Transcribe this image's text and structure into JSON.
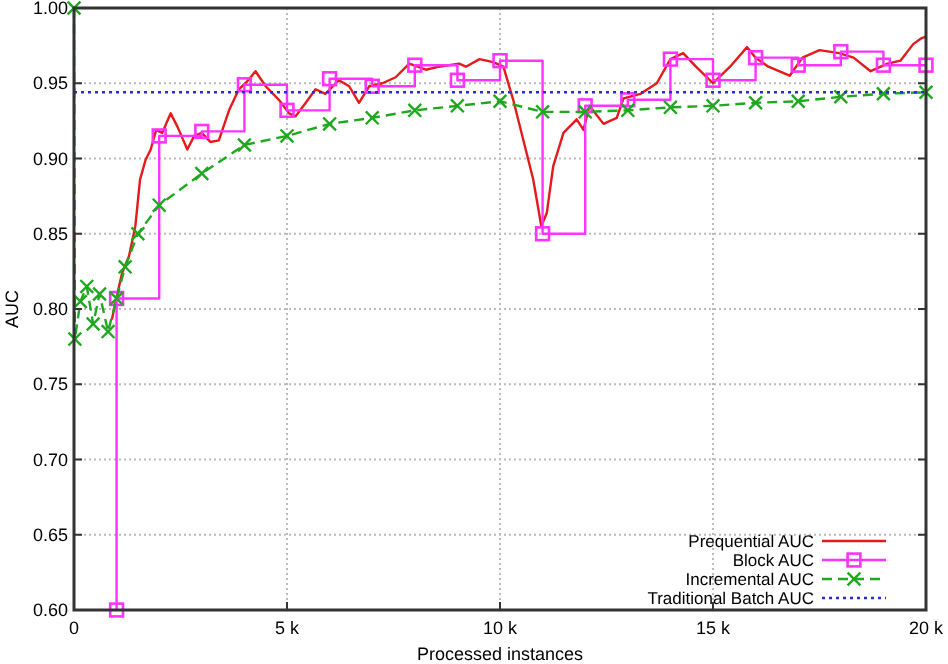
{
  "chart_data": {
    "type": "line",
    "xlabel": "Processed instances",
    "ylabel": "AUC",
    "xlim": [
      0,
      20000
    ],
    "ylim": [
      0.6,
      1.0
    ],
    "xticks": [
      0,
      {
        "value": 5000,
        "label": "5 k"
      },
      {
        "value": 10000,
        "label": "10 k"
      },
      {
        "value": 15000,
        "label": "15 k"
      },
      {
        "value": 20000,
        "label": "20 k"
      }
    ],
    "yticks": [
      {
        "value": 0.6,
        "label": "0.60"
      },
      {
        "value": 0.65,
        "label": "0.65"
      },
      {
        "value": 0.7,
        "label": "0.70"
      },
      {
        "value": 0.75,
        "label": "0.75"
      },
      {
        "value": 0.8,
        "label": "0.80"
      },
      {
        "value": 0.85,
        "label": "0.85"
      },
      {
        "value": 0.9,
        "label": "0.90"
      },
      {
        "value": 0.95,
        "label": "0.95"
      },
      {
        "value": 1.0,
        "label": "1.00"
      }
    ],
    "grid": true,
    "legend": "bottom right",
    "series": [
      {
        "name": "Prequential AUC",
        "color": "#e41a1c",
        "marker": "none",
        "line_style": "solid",
        "x": [
          890,
          1000,
          1130,
          1290,
          1440,
          1550,
          1680,
          1800,
          1930,
          2070,
          2270,
          2430,
          2660,
          2820,
          3000,
          3200,
          3400,
          3640,
          3870,
          4060,
          4260,
          4500,
          4810,
          5050,
          5200,
          5440,
          5670,
          5900,
          6220,
          6460,
          6690,
          6930,
          7240,
          7550,
          7870,
          8260,
          8570,
          9040,
          9200,
          9520,
          9840,
          10080,
          10310,
          10550,
          10780,
          10970,
          11100,
          11250,
          11490,
          11800,
          11960,
          12100,
          12430,
          12740,
          12900,
          13300,
          13680,
          14000,
          14300,
          14600,
          15000,
          15400,
          15800,
          16000,
          16300,
          16800,
          17100,
          17500,
          17960,
          18300,
          18700,
          19100,
          19400,
          19700,
          19900,
          20000
        ],
        "values": [
          0.793,
          0.808,
          0.824,
          0.835,
          0.855,
          0.886,
          0.899,
          0.906,
          0.919,
          0.917,
          0.93,
          0.921,
          0.906,
          0.915,
          0.917,
          0.911,
          0.912,
          0.932,
          0.946,
          0.951,
          0.958,
          0.948,
          0.939,
          0.93,
          0.928,
          0.937,
          0.946,
          0.943,
          0.952,
          0.948,
          0.937,
          0.948,
          0.95,
          0.954,
          0.963,
          0.959,
          0.961,
          0.963,
          0.961,
          0.966,
          0.964,
          0.961,
          0.939,
          0.912,
          0.886,
          0.855,
          0.864,
          0.895,
          0.917,
          0.926,
          0.919,
          0.935,
          0.923,
          0.927,
          0.94,
          0.943,
          0.95,
          0.966,
          0.97,
          0.961,
          0.95,
          0.961,
          0.974,
          0.967,
          0.961,
          0.955,
          0.967,
          0.972,
          0.97,
          0.967,
          0.958,
          0.963,
          0.965,
          0.976,
          0.98,
          0.981
        ]
      },
      {
        "name": "Block AUC",
        "type": "step",
        "color": "#ff33ff",
        "marker": "square",
        "line_style": "solid",
        "x": [
          1000,
          1000,
          2000,
          3000,
          4000,
          5000,
          6000,
          7000,
          8000,
          9000,
          10000,
          11000,
          12000,
          13000,
          14000,
          15000,
          16000,
          17000,
          18000,
          19000,
          20000
        ],
        "values": [
          0.6,
          0.807,
          0.915,
          0.918,
          0.949,
          0.932,
          0.953,
          0.948,
          0.962,
          0.952,
          0.965,
          0.85,
          0.935,
          0.939,
          0.966,
          0.952,
          0.967,
          0.962,
          0.971,
          0.962,
          0.962
        ]
      },
      {
        "name": "Incremental AUC",
        "color": "#1fa81f",
        "marker": "cross",
        "line_style": "dashed",
        "x": [
          0,
          20,
          150,
          300,
          450,
          600,
          800,
          1000,
          1200,
          1500,
          2000,
          3000,
          4000,
          5000,
          6000,
          7000,
          8000,
          9000,
          10000,
          11000,
          12000,
          13000,
          14000,
          15000,
          16000,
          17000,
          18000,
          19000,
          20000
        ],
        "values": [
          1.0,
          0.78,
          0.805,
          0.815,
          0.79,
          0.81,
          0.785,
          0.807,
          0.828,
          0.85,
          0.869,
          0.89,
          0.909,
          0.915,
          0.923,
          0.927,
          0.932,
          0.935,
          0.938,
          0.931,
          0.931,
          0.932,
          0.934,
          0.935,
          0.937,
          0.938,
          0.941,
          0.943,
          0.944
        ]
      },
      {
        "name": "Traditional Batch AUC",
        "color": "#2b2bd6",
        "marker": "none",
        "line_style": "dotted",
        "x": [
          0,
          20000
        ],
        "values": [
          0.944,
          0.944
        ]
      }
    ]
  }
}
